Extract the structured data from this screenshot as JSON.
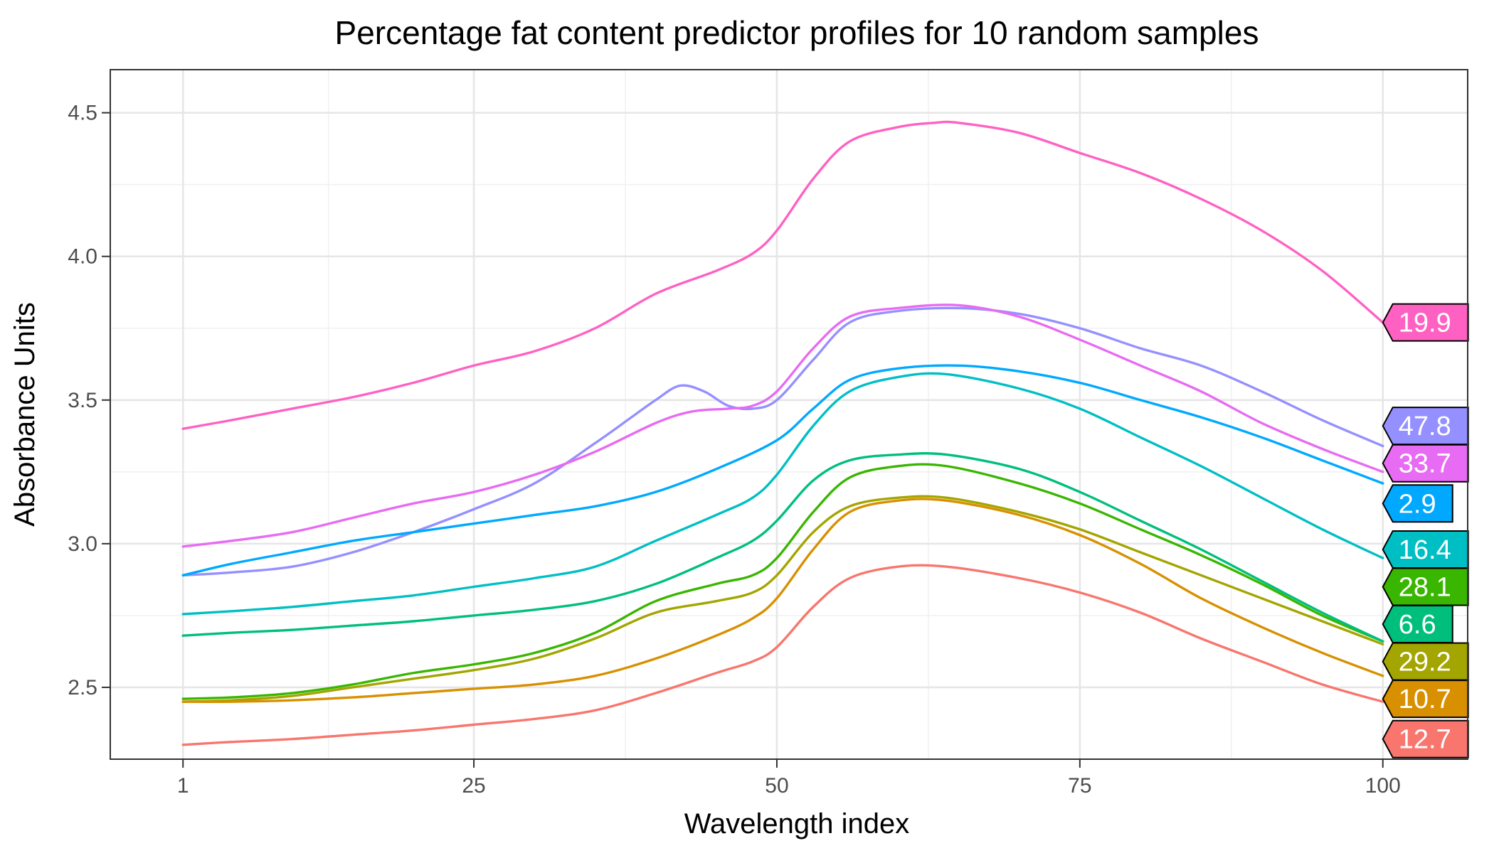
{
  "chart_data": {
    "type": "line",
    "title": "Percentage fat content predictor profiles for 10 random samples",
    "xlabel": "Wavelength index",
    "ylabel": "Absorbance Units",
    "xlim": [
      -5,
      107
    ],
    "ylim": [
      2.25,
      4.65
    ],
    "x_ticks": [
      1,
      25,
      50,
      75,
      100
    ],
    "y_ticks": [
      2.5,
      3.0,
      3.5,
      4.0,
      4.5
    ],
    "x_tick_labels": [
      "1",
      "25",
      "50",
      "75",
      "100"
    ],
    "y_tick_labels": [
      "2.5",
      "3.0",
      "3.5",
      "4.0",
      "4.5"
    ],
    "grid": true,
    "legend": "none",
    "series": [
      {
        "name": "19.9",
        "color": "#FF61C3",
        "points": [
          [
            1,
            3.4
          ],
          [
            5,
            3.43
          ],
          [
            10,
            3.47
          ],
          [
            15,
            3.51
          ],
          [
            20,
            3.56
          ],
          [
            25,
            3.62
          ],
          [
            30,
            3.67
          ],
          [
            35,
            3.75
          ],
          [
            40,
            3.87
          ],
          [
            45,
            3.95
          ],
          [
            48,
            4.01
          ],
          [
            50,
            4.09
          ],
          [
            53,
            4.27
          ],
          [
            56,
            4.4
          ],
          [
            60,
            4.45
          ],
          [
            63,
            4.465
          ],
          [
            65,
            4.465
          ],
          [
            70,
            4.43
          ],
          [
            75,
            4.36
          ],
          [
            80,
            4.29
          ],
          [
            85,
            4.2
          ],
          [
            90,
            4.09
          ],
          [
            95,
            3.95
          ],
          [
            100,
            3.77
          ]
        ]
      },
      {
        "name": "47.8",
        "color": "#9590FF",
        "points": [
          [
            1,
            2.89
          ],
          [
            5,
            2.9
          ],
          [
            10,
            2.92
          ],
          [
            15,
            2.97
          ],
          [
            20,
            3.04
          ],
          [
            25,
            3.12
          ],
          [
            30,
            3.21
          ],
          [
            35,
            3.35
          ],
          [
            38,
            3.44
          ],
          [
            40,
            3.5
          ],
          [
            42,
            3.55
          ],
          [
            44,
            3.53
          ],
          [
            46,
            3.48
          ],
          [
            48,
            3.47
          ],
          [
            50,
            3.5
          ],
          [
            53,
            3.64
          ],
          [
            56,
            3.77
          ],
          [
            60,
            3.81
          ],
          [
            65,
            3.82
          ],
          [
            70,
            3.8
          ],
          [
            75,
            3.75
          ],
          [
            80,
            3.68
          ],
          [
            85,
            3.62
          ],
          [
            90,
            3.53
          ],
          [
            95,
            3.43
          ],
          [
            100,
            3.34
          ]
        ]
      },
      {
        "name": "33.7",
        "color": "#E76BF3",
        "points": [
          [
            1,
            2.99
          ],
          [
            5,
            3.01
          ],
          [
            10,
            3.04
          ],
          [
            15,
            3.09
          ],
          [
            20,
            3.14
          ],
          [
            25,
            3.18
          ],
          [
            30,
            3.24
          ],
          [
            35,
            3.32
          ],
          [
            40,
            3.42
          ],
          [
            43,
            3.46
          ],
          [
            46,
            3.47
          ],
          [
            48,
            3.48
          ],
          [
            50,
            3.53
          ],
          [
            53,
            3.68
          ],
          [
            56,
            3.79
          ],
          [
            60,
            3.82
          ],
          [
            65,
            3.83
          ],
          [
            70,
            3.79
          ],
          [
            75,
            3.71
          ],
          [
            80,
            3.62
          ],
          [
            85,
            3.53
          ],
          [
            90,
            3.42
          ],
          [
            95,
            3.33
          ],
          [
            100,
            3.25
          ]
        ]
      },
      {
        "name": "2.9",
        "color": "#00A9FF",
        "points": [
          [
            1,
            2.89
          ],
          [
            5,
            2.93
          ],
          [
            10,
            2.97
          ],
          [
            15,
            3.01
          ],
          [
            20,
            3.04
          ],
          [
            25,
            3.07
          ],
          [
            30,
            3.1
          ],
          [
            35,
            3.13
          ],
          [
            40,
            3.18
          ],
          [
            45,
            3.26
          ],
          [
            50,
            3.36
          ],
          [
            53,
            3.47
          ],
          [
            56,
            3.57
          ],
          [
            60,
            3.61
          ],
          [
            65,
            3.62
          ],
          [
            70,
            3.6
          ],
          [
            75,
            3.56
          ],
          [
            80,
            3.5
          ],
          [
            85,
            3.44
          ],
          [
            90,
            3.37
          ],
          [
            95,
            3.29
          ],
          [
            100,
            3.21
          ]
        ]
      },
      {
        "name": "16.4",
        "color": "#00BFC4",
        "points": [
          [
            1,
            2.755
          ],
          [
            5,
            2.765
          ],
          [
            10,
            2.78
          ],
          [
            15,
            2.8
          ],
          [
            20,
            2.82
          ],
          [
            25,
            2.85
          ],
          [
            30,
            2.88
          ],
          [
            35,
            2.92
          ],
          [
            40,
            3.01
          ],
          [
            45,
            3.1
          ],
          [
            48,
            3.16
          ],
          [
            50,
            3.24
          ],
          [
            53,
            3.41
          ],
          [
            56,
            3.53
          ],
          [
            60,
            3.58
          ],
          [
            64,
            3.59
          ],
          [
            70,
            3.54
          ],
          [
            75,
            3.47
          ],
          [
            80,
            3.37
          ],
          [
            85,
            3.27
          ],
          [
            90,
            3.16
          ],
          [
            95,
            3.05
          ],
          [
            100,
            2.95
          ]
        ]
      },
      {
        "name": "28.1",
        "color": "#39B600",
        "points": [
          [
            1,
            2.46
          ],
          [
            5,
            2.465
          ],
          [
            10,
            2.48
          ],
          [
            15,
            2.51
          ],
          [
            20,
            2.55
          ],
          [
            25,
            2.58
          ],
          [
            30,
            2.62
          ],
          [
            35,
            2.69
          ],
          [
            40,
            2.8
          ],
          [
            45,
            2.86
          ],
          [
            48,
            2.89
          ],
          [
            50,
            2.95
          ],
          [
            53,
            3.11
          ],
          [
            56,
            3.23
          ],
          [
            60,
            3.27
          ],
          [
            64,
            3.27
          ],
          [
            70,
            3.21
          ],
          [
            75,
            3.14
          ],
          [
            80,
            3.05
          ],
          [
            85,
            2.96
          ],
          [
            90,
            2.86
          ],
          [
            95,
            2.75
          ],
          [
            100,
            2.66
          ]
        ]
      },
      {
        "name": "6.6",
        "color": "#00BF7D",
        "points": [
          [
            1,
            2.68
          ],
          [
            5,
            2.69
          ],
          [
            10,
            2.7
          ],
          [
            15,
            2.715
          ],
          [
            20,
            2.73
          ],
          [
            25,
            2.75
          ],
          [
            30,
            2.77
          ],
          [
            35,
            2.8
          ],
          [
            40,
            2.86
          ],
          [
            45,
            2.95
          ],
          [
            48,
            3.01
          ],
          [
            50,
            3.08
          ],
          [
            53,
            3.22
          ],
          [
            56,
            3.29
          ],
          [
            60,
            3.31
          ],
          [
            64,
            3.31
          ],
          [
            70,
            3.26
          ],
          [
            75,
            3.18
          ],
          [
            80,
            3.08
          ],
          [
            85,
            2.98
          ],
          [
            90,
            2.87
          ],
          [
            95,
            2.76
          ],
          [
            100,
            2.66
          ]
        ]
      },
      {
        "name": "29.2",
        "color": "#A3A500",
        "points": [
          [
            1,
            2.45
          ],
          [
            5,
            2.455
          ],
          [
            10,
            2.47
          ],
          [
            15,
            2.5
          ],
          [
            20,
            2.53
          ],
          [
            25,
            2.56
          ],
          [
            30,
            2.6
          ],
          [
            35,
            2.67
          ],
          [
            40,
            2.76
          ],
          [
            45,
            2.8
          ],
          [
            48,
            2.83
          ],
          [
            50,
            2.89
          ],
          [
            53,
            3.04
          ],
          [
            56,
            3.13
          ],
          [
            60,
            3.16
          ],
          [
            64,
            3.16
          ],
          [
            70,
            3.11
          ],
          [
            75,
            3.05
          ],
          [
            80,
            2.97
          ],
          [
            85,
            2.89
          ],
          [
            90,
            2.81
          ],
          [
            95,
            2.73
          ],
          [
            100,
            2.65
          ]
        ]
      },
      {
        "name": "10.7",
        "color": "#D89000",
        "points": [
          [
            1,
            2.45
          ],
          [
            5,
            2.45
          ],
          [
            10,
            2.455
          ],
          [
            15,
            2.465
          ],
          [
            20,
            2.48
          ],
          [
            25,
            2.495
          ],
          [
            30,
            2.51
          ],
          [
            35,
            2.54
          ],
          [
            40,
            2.6
          ],
          [
            45,
            2.68
          ],
          [
            48,
            2.74
          ],
          [
            50,
            2.81
          ],
          [
            53,
            2.98
          ],
          [
            56,
            3.11
          ],
          [
            60,
            3.15
          ],
          [
            64,
            3.15
          ],
          [
            70,
            3.1
          ],
          [
            75,
            3.03
          ],
          [
            80,
            2.93
          ],
          [
            85,
            2.81
          ],
          [
            90,
            2.71
          ],
          [
            95,
            2.62
          ],
          [
            100,
            2.54
          ]
        ]
      },
      {
        "name": "12.7",
        "color": "#F8766D",
        "points": [
          [
            1,
            2.3
          ],
          [
            5,
            2.31
          ],
          [
            10,
            2.32
          ],
          [
            15,
            2.335
          ],
          [
            20,
            2.35
          ],
          [
            25,
            2.37
          ],
          [
            30,
            2.39
          ],
          [
            35,
            2.42
          ],
          [
            40,
            2.48
          ],
          [
            45,
            2.55
          ],
          [
            48,
            2.59
          ],
          [
            50,
            2.64
          ],
          [
            53,
            2.78
          ],
          [
            56,
            2.88
          ],
          [
            60,
            2.92
          ],
          [
            64,
            2.92
          ],
          [
            70,
            2.88
          ],
          [
            75,
            2.83
          ],
          [
            80,
            2.76
          ],
          [
            85,
            2.67
          ],
          [
            90,
            2.59
          ],
          [
            95,
            2.51
          ],
          [
            100,
            2.45
          ]
        ]
      }
    ],
    "end_labels": [
      {
        "text": "19.9",
        "color": "#FF61C3",
        "y": 3.77,
        "text_color": "#ffffff"
      },
      {
        "text": "47.8",
        "color": "#9590FF",
        "y": 3.41,
        "text_color": "#ffffff"
      },
      {
        "text": "33.7",
        "color": "#E76BF3",
        "y": 3.28,
        "text_color": "#ffffff"
      },
      {
        "text": "2.9",
        "color": "#00A9FF",
        "y": 3.14,
        "text_color": "#ffffff"
      },
      {
        "text": "16.4",
        "color": "#00BFC4",
        "y": 2.98,
        "text_color": "#ffffff"
      },
      {
        "text": "28.1",
        "color": "#39B600",
        "y": 2.85,
        "text_color": "#ffffff"
      },
      {
        "text": "6.6",
        "color": "#00BF7D",
        "y": 2.72,
        "text_color": "#ffffff"
      },
      {
        "text": "29.2",
        "color": "#A3A500",
        "y": 2.59,
        "text_color": "#ffffff"
      },
      {
        "text": "10.7",
        "color": "#D89000",
        "y": 2.46,
        "text_color": "#ffffff"
      },
      {
        "text": "12.7",
        "color": "#F8766D",
        "y": 2.32,
        "text_color": "#ffffff"
      }
    ]
  }
}
